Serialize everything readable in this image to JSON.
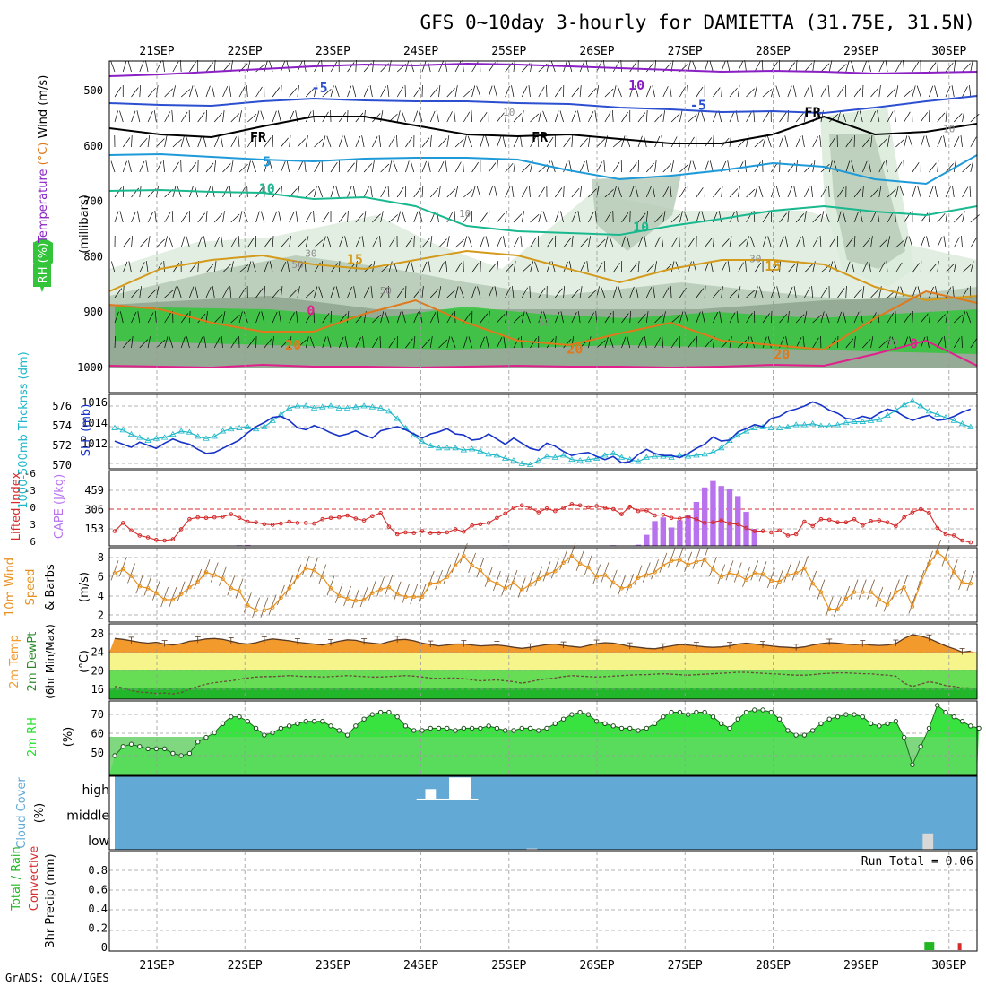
{
  "header": {
    "title": "GFS 0~10day 3-hourly for DAMIETTA (31.75E, 31.5N)",
    "footer": "GrADS: COLA/IGES",
    "run_total": "Run Total = 0.06"
  },
  "dates": [
    "21SEP",
    "22SEP",
    "23SEP",
    "24SEP",
    "25SEP",
    "26SEP",
    "27SEP",
    "28SEP",
    "29SEP",
    "30SEP"
  ],
  "colors": {
    "rh_dark": "#8fa58f",
    "rh_mid": "#b5c9b5",
    "rh_light": "#dcebdc",
    "rh_green": "#33c43a",
    "t_purple": "#8a1fc4",
    "t_blue": "#2c4fd0",
    "t_black": "#000000",
    "t_sky": "#1e9ad8",
    "t_teal": "#19b88f",
    "t_gold": "#d49a1c",
    "t_orange": "#e0781c",
    "t_pink": "#e0208c",
    "slp": "#1733c8",
    "thick": "#1fb8c8",
    "li": "#d42c2c",
    "cape": "#b872ee",
    "wind": "#e6901e",
    "temp": "#f39a2c",
    "rh2m": "#23e02a",
    "cloud": "#63a9d5",
    "precip": "#22b722"
  },
  "chart_data": [
    {
      "id": "upper_air",
      "type": "contour",
      "ylabel": "(millibars)",
      "ylabel_parts": [
        "RH (%)",
        "Temperature",
        " (°C)",
        " Wind ",
        "(m/s)"
      ],
      "y_ticks": [
        "500",
        "600",
        "700",
        "800",
        "900",
        "1000"
      ],
      "isotherm_labels": [
        {
          "text": "10",
          "color": "t_purple",
          "day": 5.45,
          "p": 498
        },
        {
          "text": "-5",
          "color": "t_blue",
          "day": 1.85,
          "p": 503
        },
        {
          "text": "-5",
          "color": "t_blue",
          "day": 6.15,
          "p": 535
        },
        {
          "text": "FR",
          "color": "t_black",
          "day": 1.15,
          "p": 592
        },
        {
          "text": "FR",
          "color": "t_black",
          "day": 4.35,
          "p": 592
        },
        {
          "text": "FR",
          "color": "t_black",
          "day": 7.45,
          "p": 548
        },
        {
          "text": "5",
          "color": "t_sky",
          "day": 1.25,
          "p": 637
        },
        {
          "text": "10",
          "color": "t_teal",
          "day": 1.25,
          "p": 685
        },
        {
          "text": "10",
          "color": "t_teal",
          "day": 5.5,
          "p": 755
        },
        {
          "text": "15",
          "color": "t_gold",
          "day": 2.25,
          "p": 813
        },
        {
          "text": "15",
          "color": "t_gold",
          "day": 7.0,
          "p": 825
        },
        {
          "text": "20",
          "color": "t_orange",
          "day": 1.55,
          "p": 968
        },
        {
          "text": "20",
          "color": "t_orange",
          "day": 4.75,
          "p": 975
        },
        {
          "text": "20",
          "color": "t_orange",
          "day": 7.1,
          "p": 985
        },
        {
          "text": "0",
          "color": "t_pink",
          "day": 1.75,
          "p": 905
        },
        {
          "text": "0",
          "color": "t_pink",
          "day": 8.6,
          "p": 965
        }
      ],
      "rh_labels": [
        {
          "text": "10",
          "day": 4.0,
          "p": 545
        },
        {
          "text": "10",
          "day": 3.5,
          "p": 728
        },
        {
          "text": "10",
          "day": 9.0,
          "p": 575
        },
        {
          "text": "30",
          "day": 1.75,
          "p": 800
        },
        {
          "text": "30",
          "day": 6.8,
          "p": 810
        },
        {
          "text": "30",
          "day": 8.35,
          "p": 960
        },
        {
          "text": "50",
          "day": 1.6,
          "p": 820
        },
        {
          "text": "50",
          "day": 2.6,
          "p": 867
        },
        {
          "text": "50",
          "day": 4.4,
          "p": 925
        }
      ]
    },
    {
      "id": "slp_thickness",
      "type": "line",
      "left_ylabel": "1000-500mb Thcknss (dm)",
      "right_ylabel": "SLP (mb)",
      "left_ticks": [
        "576",
        "574",
        "572",
        "570"
      ],
      "right_ticks": [
        "1016",
        "1014",
        "1012"
      ],
      "slp_mb": [
        1012.6,
        1012.3,
        1012.0,
        1012.5,
        1012.2,
        1011.9,
        1012.4,
        1012.8,
        1012.5,
        1012.3,
        1011.8,
        1011.4,
        1011.5,
        1011.9,
        1012.3,
        1012.7,
        1013.4,
        1014.0,
        1014.4,
        1014.9,
        1015.0,
        1014.6,
        1013.9,
        1013.7,
        1014.1,
        1013.8,
        1013.4,
        1013.1,
        1013.3,
        1013.6,
        1013.2,
        1012.9,
        1013.6,
        1013.8,
        1014.0,
        1013.7,
        1013.3,
        1012.9,
        1013.3,
        1013.5,
        1013.8,
        1013.3,
        1013.2,
        1012.7,
        1012.8,
        1013.3,
        1012.8,
        1012.3,
        1012.9,
        1012.4,
        1011.9,
        1011.7,
        1012.4,
        1012.1,
        1011.6,
        1011.2,
        1011.4,
        1011.5,
        1011.1,
        1010.8,
        1011.1,
        1010.5,
        1010.6,
        1011.3,
        1011.8,
        1011.4,
        1011.2,
        1011.2,
        1011.0,
        1011.4,
        1011.9,
        1012.3,
        1013.0,
        1012.6,
        1012.7,
        1013.5,
        1013.8,
        1014.2,
        1014.0,
        1014.8,
        1015.0,
        1015.5,
        1015.7,
        1016.0,
        1016.4,
        1016.1,
        1015.6,
        1015.3,
        1014.8,
        1014.7,
        1015.0,
        1014.8,
        1015.3,
        1015.7,
        1015.5,
        1015.0,
        1014.6,
        1014.9,
        1015.1,
        1014.6,
        1014.7,
        1015.0,
        1015.4,
        1015.7
      ],
      "thickness_dm": [
        573.9,
        573.7,
        573.3,
        573.0,
        572.7,
        572.9,
        573.0,
        573.3,
        573.6,
        573.5,
        573.1,
        572.9,
        573.1,
        573.6,
        573.8,
        573.9,
        574.0,
        573.8,
        574.0,
        574.6,
        575.2,
        575.8,
        576.0,
        576.0,
        575.8,
        575.9,
        576.0,
        575.8,
        575.8,
        575.9,
        576.0,
        575.9,
        575.8,
        575.5,
        574.8,
        573.9,
        573.2,
        572.6,
        572.2,
        572.0,
        572.0,
        572.0,
        571.8,
        571.9,
        571.7,
        571.4,
        571.3,
        571.0,
        570.8,
        570.5,
        570.4,
        570.8,
        571.2,
        571.1,
        571.3,
        570.9,
        570.8,
        570.9,
        571.0,
        571.3,
        571.5,
        571.1,
        570.9,
        570.7,
        571.1,
        571.2,
        571.2,
        571.1,
        571.3,
        571.2,
        571.3,
        571.4,
        571.6,
        572.0,
        572.7,
        573.2,
        573.6,
        573.9,
        574.0,
        573.9,
        573.9,
        574.0,
        574.2,
        574.2,
        574.3,
        574.1,
        574.1,
        574.2,
        574.4,
        574.5,
        574.5,
        574.6,
        574.7,
        575.1,
        575.6,
        576.1,
        576.5,
        576.0,
        575.5,
        575.2,
        574.9,
        574.6,
        574.3,
        574.0
      ]
    },
    {
      "id": "li_cape",
      "type": "line+bar",
      "left_ylabel": "Lifted Index",
      "right_ylabel": "CAPE (J/kg)",
      "li_ticks": [
        "-6",
        "-3",
        "0",
        "3",
        "6"
      ],
      "cape_ticks": [
        "459",
        "306",
        "153"
      ],
      "lifted_index": [
        3.5,
        2.2,
        3.4,
        4.2,
        4.5,
        4.9,
        5.0,
        4.8,
        3.2,
        1.6,
        1.3,
        1.4,
        1.3,
        1.2,
        0.8,
        1.4,
        2.0,
        2.1,
        2.4,
        2.5,
        2.3,
        2.0,
        2.2,
        2.2,
        2.3,
        1.6,
        1.4,
        1.3,
        1.0,
        1.5,
        1.8,
        1.1,
        0.6,
        2.8,
        4.0,
        3.7,
        3.8,
        3.5,
        3.8,
        3.8,
        3.7,
        3.2,
        3.6,
        2.6,
        2.4,
        2.2,
        1.4,
        0.7,
        -0.2,
        -0.6,
        -0.2,
        0.5,
        -0.1,
        0.3,
        -0.2,
        -0.8,
        -0.6,
        -0.3,
        -0.5,
        -0.2,
        0.0,
        0.8,
        -0.4,
        0.3,
        0.2,
        1.0,
        0.9,
        1.4,
        1.5,
        1.2,
        1.6,
        2.2,
        2.1,
        1.8,
        2.3,
        2.4,
        3.0,
        3.5,
        3.5,
        3.7,
        3.4,
        4.2,
        4.0,
        2.0,
        2.7,
        1.6,
        1.7,
        2.1,
        2.1,
        1.6,
        2.6,
        1.9,
        1.8,
        2.1,
        2.7,
        1.3,
        0.5,
        0.0,
        0.6,
        3.0,
        4.0,
        4.2,
        5.0,
        5.3
      ],
      "cape": [
        0,
        0,
        0,
        0,
        0,
        0,
        0,
        0,
        0,
        0,
        0,
        0,
        0,
        0,
        0,
        6,
        8,
        3,
        0,
        0,
        0,
        0,
        0,
        0,
        0,
        0,
        0,
        0,
        0,
        0,
        0,
        0,
        0,
        0,
        0,
        0,
        0,
        0,
        0,
        0,
        0,
        0,
        0,
        0,
        0,
        0,
        0,
        5,
        0,
        0,
        0,
        0,
        0,
        0,
        0,
        0,
        0,
        0,
        0,
        0,
        6,
        0,
        0,
        10,
        92,
        205,
        235,
        152,
        212,
        250,
        363,
        483,
        536,
        495,
        474,
        412,
        281,
        140,
        0,
        0,
        0,
        0,
        0,
        0,
        0,
        0,
        0,
        0,
        0,
        0,
        0,
        0,
        0,
        0,
        0,
        0,
        0,
        0,
        0,
        0,
        0,
        0,
        0,
        0
      ]
    },
    {
      "id": "wind10m",
      "type": "line",
      "ylabel": "10m Wind Speed & Barbs (m/s)",
      "y_ticks": [
        "8",
        "6",
        "4",
        "2"
      ],
      "speed": [
        6.4,
        6.8,
        6.1,
        5.0,
        4.8,
        4.3,
        3.6,
        3.6,
        4.2,
        4.9,
        5.5,
        6.5,
        6.2,
        5.8,
        4.8,
        4.5,
        3.0,
        2.5,
        2.5,
        2.8,
        3.8,
        4.8,
        6.0,
        6.9,
        6.7,
        6.0,
        4.8,
        4.0,
        3.7,
        3.5,
        3.6,
        4.3,
        4.7,
        4.9,
        4.2,
        3.9,
        3.9,
        3.9,
        5.3,
        5.4,
        6.0,
        7.2,
        8.2,
        7.2,
        6.7,
        5.7,
        5.3,
        4.8,
        5.4,
        4.6,
        5.2,
        5.8,
        6.3,
        6.6,
        7.5,
        8.2,
        7.4,
        7.0,
        6.0,
        6.2,
        5.4,
        4.8,
        5.0,
        5.9,
        6.2,
        6.5,
        7.2,
        7.7,
        7.8,
        7.3,
        7.6,
        7.8,
        6.8,
        6.0,
        6.4,
        6.2,
        5.7,
        6.4,
        6.3,
        5.6,
        5.5,
        6.2,
        6.4,
        6.9,
        5.3,
        4.4,
        2.6,
        2.6,
        3.7,
        4.4,
        4.4,
        4.4,
        3.6,
        3.1,
        4.4,
        4.9,
        2.9,
        5.4,
        7.4,
        8.6,
        7.9,
        6.5,
        5.4,
        5.3
      ]
    },
    {
      "id": "temp2m",
      "type": "area",
      "ylabel": "2m Temp 2m DewPt (6hr Min/Max) (°C)",
      "y_ticks": [
        "28",
        "24",
        "20",
        "16"
      ],
      "temperature": [
        27.0,
        26.8,
        26.5,
        26.2,
        26.0,
        26.2,
        25.8,
        25.6,
        25.9,
        26.4,
        26.6,
        26.9,
        27.0,
        26.8,
        26.4,
        26.0,
        25.8,
        26.1,
        26.6,
        26.9,
        26.7,
        26.5,
        26.2,
        26.0,
        25.8,
        25.6,
        26.0,
        26.4,
        26.7,
        26.6,
        26.2,
        26.0,
        25.8,
        26.3,
        26.7,
        26.8,
        26.5,
        26.0,
        25.7,
        25.4,
        25.6,
        25.8,
        25.8,
        25.6,
        25.4,
        25.5,
        25.6,
        25.4,
        25.1,
        24.9,
        25.1,
        25.4,
        25.7,
        25.8,
        25.5,
        25.3,
        25.1,
        25.5,
        25.9,
        26.1,
        26.0,
        25.7,
        25.3,
        25.1,
        24.9,
        24.8,
        25.1,
        25.4,
        25.7,
        25.6,
        25.4,
        25.2,
        25.1,
        25.2,
        25.4,
        25.8,
        26.0,
        25.8,
        25.6,
        25.4,
        25.2,
        25.1,
        25.0,
        25.2,
        25.6,
        25.9,
        26.1,
        26.0,
        25.8,
        25.7,
        25.8,
        25.6,
        25.5,
        25.6,
        25.9,
        27.0,
        27.8,
        27.5,
        27.0,
        26.2,
        25.4,
        24.8,
        24.1,
        24.3
      ],
      "dewpoint": [
        16.8,
        16.5,
        15.9,
        15.6,
        15.5,
        15.3,
        15.4,
        15.2,
        15.5,
        16.2,
        16.8,
        17.3,
        17.6,
        17.8,
        18.0,
        18.3,
        18.6,
        18.8,
        18.9,
        18.9,
        19.0,
        19.1,
        19.0,
        18.9,
        18.9,
        18.8,
        18.9,
        19.0,
        19.1,
        19.0,
        18.9,
        18.8,
        18.8,
        18.9,
        19.0,
        19.1,
        19.0,
        18.8,
        18.6,
        18.5,
        18.6,
        18.6,
        18.5,
        18.2,
        18.0,
        18.1,
        18.2,
        18.0,
        17.8,
        17.5,
        17.8,
        18.2,
        18.4,
        18.6,
        18.9,
        19.1,
        19.0,
        18.9,
        18.8,
        18.9,
        19.0,
        19.1,
        19.2,
        19.3,
        19.3,
        19.4,
        19.5,
        19.4,
        19.3,
        19.2,
        19.3,
        19.4,
        19.5,
        19.6,
        19.7,
        19.8,
        19.8,
        19.7,
        19.6,
        19.5,
        19.4,
        19.3,
        19.2,
        19.2,
        19.3,
        19.5,
        19.6,
        19.7,
        19.7,
        19.6,
        19.5,
        19.5,
        19.3,
        19.2,
        19.0,
        17.5,
        16.8,
        17.3,
        17.8,
        17.5,
        17.0,
        16.8,
        16.5,
        16.5
      ]
    },
    {
      "id": "rh2m",
      "type": "area",
      "ylabel": "2m RH (%)",
      "y_ticks": [
        "70",
        "60",
        "50"
      ],
      "rh": [
        50,
        54,
        55,
        54,
        53,
        53,
        53,
        51,
        50,
        51,
        56,
        58,
        60,
        64,
        67,
        67,
        65,
        62,
        59,
        60,
        62,
        63,
        64,
        65,
        65,
        65,
        63,
        61,
        59,
        63,
        66,
        68,
        69,
        69,
        67,
        63,
        61,
        61,
        62,
        62,
        62,
        61,
        62,
        62,
        62,
        63,
        62,
        61,
        61,
        62,
        62,
        61,
        62,
        64,
        66,
        68,
        69,
        68,
        65,
        64,
        63,
        62,
        62,
        61,
        62,
        64,
        67,
        69,
        69,
        68,
        69,
        69,
        67,
        64,
        62,
        66,
        69,
        70,
        70,
        69,
        66,
        61,
        59,
        59,
        61,
        64,
        66,
        67,
        68,
        68,
        67,
        64,
        63,
        64,
        65,
        58,
        46,
        54,
        62,
        72,
        69,
        67,
        65,
        63,
        62
      ]
    },
    {
      "id": "cloud",
      "type": "bar",
      "ylabel": "Cloud Cover (%)",
      "levels": [
        "high",
        "middle",
        "low"
      ],
      "blocks": [
        {
          "level": "high",
          "day": 3.05,
          "width": 0.12,
          "value": 0.45
        },
        {
          "level": "high",
          "day": 3.32,
          "width": 0.25,
          "value": 0.95
        },
        {
          "level": "high",
          "day": 2.95,
          "width": 0.7,
          "value": 0.04
        },
        {
          "level": "low",
          "day": 4.2,
          "width": 0.12,
          "value": 0.05
        },
        {
          "level": "low",
          "day": 8.7,
          "width": 0.12,
          "value": 0.7
        }
      ]
    },
    {
      "id": "precip",
      "type": "bar",
      "ylabel": "3hr Precip (mm)",
      "ylabel_left": [
        "Total / Rain",
        "Convective"
      ],
      "y_ticks": [
        "0.8",
        "0.6",
        "0.4",
        "0.2",
        "0"
      ],
      "bars": [
        {
          "day": 8.72,
          "value": 0.04,
          "kind": "total"
        },
        {
          "day": 9.1,
          "value": 0.035,
          "kind": "convective"
        }
      ]
    }
  ]
}
